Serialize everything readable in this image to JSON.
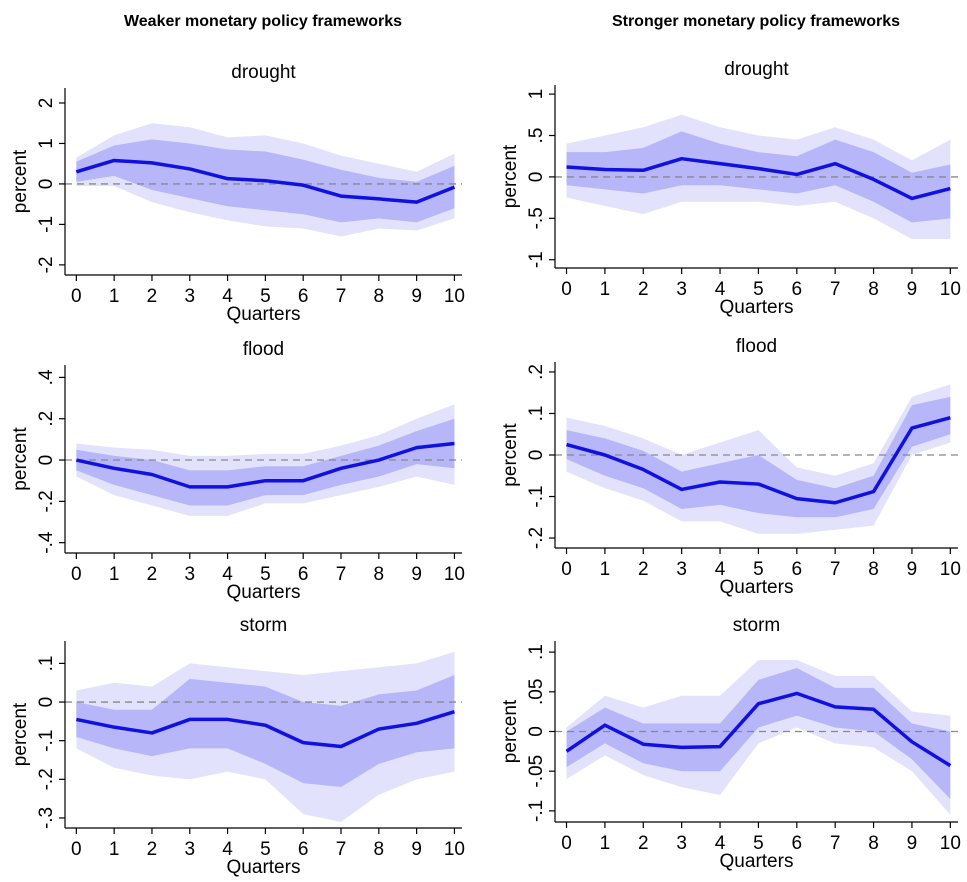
{
  "column_titles": [
    "Weaker monetary policy frameworks",
    "Stronger monetary policy frameworks"
  ],
  "chart_data": [
    {
      "type": "line",
      "title": "drought",
      "xlabel": "Quarters",
      "ylabel": "percent",
      "x": [
        0,
        1,
        2,
        3,
        4,
        5,
        6,
        7,
        8,
        9,
        10
      ],
      "xlim": [
        -0.3,
        10.2
      ],
      "xticks": [
        0,
        1,
        2,
        3,
        4,
        5,
        6,
        7,
        8,
        9,
        10
      ],
      "ylim": [
        -2.25,
        2.37
      ],
      "yticks": [
        -2,
        -1,
        0,
        1,
        2
      ],
      "series": [
        {
          "color": "#1010e0",
          "values": [
            0.3,
            0.58,
            0.52,
            0.37,
            0.13,
            0.08,
            -0.03,
            -0.3,
            -0.37,
            -0.45,
            -0.08
          ]
        }
      ],
      "bands": [
        {
          "color": "#e2e2fc",
          "upper": [
            0.65,
            1.2,
            1.5,
            1.4,
            1.15,
            1.2,
            1.0,
            0.7,
            0.5,
            0.3,
            0.75
          ],
          "lower": [
            -0.05,
            -0.05,
            -0.45,
            -0.7,
            -0.9,
            -1.05,
            -1.1,
            -1.3,
            -1.1,
            -1.15,
            -0.85
          ]
        },
        {
          "color": "#b6b6f8",
          "upper": [
            0.55,
            0.95,
            1.1,
            1.0,
            0.85,
            0.8,
            0.6,
            0.35,
            0.15,
            0.05,
            0.45
          ],
          "lower": [
            0.05,
            0.2,
            -0.15,
            -0.35,
            -0.55,
            -0.65,
            -0.75,
            -0.95,
            -0.85,
            -0.95,
            -0.6
          ]
        }
      ]
    },
    {
      "type": "line",
      "title": "drought",
      "xlabel": "Quarters",
      "ylabel": "percent",
      "x": [
        0,
        1,
        2,
        3,
        4,
        5,
        6,
        7,
        8,
        9,
        10
      ],
      "xlim": [
        -0.3,
        10.2
      ],
      "xticks": [
        0,
        1,
        2,
        3,
        4,
        5,
        6,
        7,
        8,
        9,
        10
      ],
      "ylim": [
        -1.1,
        1.11
      ],
      "yticks": [
        -1,
        {
          "value": -0.5,
          "label": "-.5"
        },
        0,
        {
          "value": 0.5,
          "label": ".5"
        },
        1
      ],
      "series": [
        {
          "color": "#1010e0",
          "values": [
            0.12,
            0.09,
            0.08,
            0.22,
            0.16,
            0.1,
            0.03,
            0.16,
            -0.03,
            -0.26,
            -0.14
          ]
        }
      ],
      "bands": [
        {
          "color": "#e2e2fc",
          "upper": [
            0.4,
            0.5,
            0.6,
            0.75,
            0.6,
            0.5,
            0.45,
            0.6,
            0.45,
            0.2,
            0.45
          ],
          "lower": [
            -0.25,
            -0.35,
            -0.45,
            -0.3,
            -0.3,
            -0.3,
            -0.35,
            -0.3,
            -0.5,
            -0.75,
            -0.75
          ]
        },
        {
          "color": "#b6b6f8",
          "upper": [
            0.3,
            0.3,
            0.35,
            0.55,
            0.4,
            0.3,
            0.25,
            0.45,
            0.3,
            0.05,
            0.15
          ],
          "lower": [
            -0.1,
            -0.15,
            -0.2,
            -0.1,
            -0.1,
            -0.15,
            -0.2,
            -0.1,
            -0.3,
            -0.55,
            -0.5
          ]
        }
      ]
    },
    {
      "type": "line",
      "title": "flood",
      "xlabel": "Quarters",
      "ylabel": "percent",
      "x": [
        0,
        1,
        2,
        3,
        4,
        5,
        6,
        7,
        8,
        9,
        10
      ],
      "xlim": [
        -0.3,
        10.2
      ],
      "xticks": [
        0,
        1,
        2,
        3,
        4,
        5,
        6,
        7,
        8,
        9,
        10
      ],
      "ylim": [
        -0.45,
        0.46
      ],
      "yticks": [
        {
          "value": -0.4,
          "label": "-.4"
        },
        {
          "value": -0.2,
          "label": "-.2"
        },
        0,
        {
          "value": 0.2,
          "label": ".2"
        },
        {
          "value": 0.4,
          "label": ".4"
        }
      ],
      "series": [
        {
          "color": "#1010e0",
          "values": [
            0.0,
            -0.04,
            -0.07,
            -0.13,
            -0.13,
            -0.1,
            -0.1,
            -0.04,
            0.0,
            0.06,
            0.08
          ]
        }
      ],
      "bands": [
        {
          "color": "#e2e2fc",
          "upper": [
            0.08,
            0.06,
            0.05,
            0.02,
            0.02,
            0.03,
            0.03,
            0.07,
            0.12,
            0.2,
            0.27
          ],
          "lower": [
            -0.08,
            -0.17,
            -0.22,
            -0.27,
            -0.27,
            -0.21,
            -0.21,
            -0.17,
            -0.13,
            -0.08,
            -0.12
          ]
        },
        {
          "color": "#b6b6f8",
          "upper": [
            0.05,
            0.02,
            0.0,
            -0.05,
            -0.05,
            -0.03,
            -0.03,
            0.02,
            0.07,
            0.14,
            0.2
          ],
          "lower": [
            -0.05,
            -0.12,
            -0.17,
            -0.22,
            -0.22,
            -0.17,
            -0.17,
            -0.12,
            -0.08,
            -0.02,
            -0.04
          ]
        }
      ]
    },
    {
      "type": "line",
      "title": "flood",
      "xlabel": "Quarters",
      "ylabel": "percent",
      "x": [
        0,
        1,
        2,
        3,
        4,
        5,
        6,
        7,
        8,
        9,
        10
      ],
      "xlim": [
        -0.3,
        10.2
      ],
      "xticks": [
        0,
        1,
        2,
        3,
        4,
        5,
        6,
        7,
        8,
        9,
        10
      ],
      "ylim": [
        -0.224,
        0.224
      ],
      "yticks": [
        {
          "value": -0.2,
          "label": "-.2"
        },
        {
          "value": -0.1,
          "label": "-.1"
        },
        0,
        {
          "value": 0.1,
          "label": ".1"
        },
        {
          "value": 0.2,
          "label": ".2"
        }
      ],
      "series": [
        {
          "color": "#1010e0",
          "values": [
            0.025,
            0.0,
            -0.035,
            -0.083,
            -0.065,
            -0.07,
            -0.105,
            -0.115,
            -0.088,
            0.065,
            0.09
          ]
        }
      ],
      "bands": [
        {
          "color": "#e2e2fc",
          "upper": [
            0.09,
            0.07,
            0.04,
            0.0,
            0.03,
            0.06,
            -0.03,
            -0.05,
            -0.02,
            0.14,
            0.17
          ],
          "lower": [
            -0.04,
            -0.08,
            -0.11,
            -0.16,
            -0.16,
            -0.19,
            -0.19,
            -0.18,
            -0.17,
            0.0,
            0.03
          ]
        },
        {
          "color": "#b6b6f8",
          "upper": [
            0.06,
            0.04,
            0.01,
            -0.04,
            -0.02,
            0.0,
            -0.06,
            -0.08,
            -0.05,
            0.12,
            0.14
          ],
          "lower": [
            -0.01,
            -0.05,
            -0.08,
            -0.13,
            -0.12,
            -0.14,
            -0.15,
            -0.15,
            -0.13,
            0.02,
            0.05
          ]
        }
      ]
    },
    {
      "type": "line",
      "title": "storm",
      "xlabel": "Quarters",
      "ylabel": "percent",
      "x": [
        0,
        1,
        2,
        3,
        4,
        5,
        6,
        7,
        8,
        9,
        10
      ],
      "xlim": [
        -0.3,
        10.2
      ],
      "xticks": [
        0,
        1,
        2,
        3,
        4,
        5,
        6,
        7,
        8,
        9,
        10
      ],
      "ylim": [
        -0.326,
        0.158
      ],
      "yticks": [
        {
          "value": -0.3,
          "label": "-.3"
        },
        {
          "value": -0.2,
          "label": "-.2"
        },
        {
          "value": -0.1,
          "label": "-.1"
        },
        0,
        {
          "value": 0.1,
          "label": ".1"
        }
      ],
      "series": [
        {
          "color": "#1010e0",
          "values": [
            -0.045,
            -0.065,
            -0.08,
            -0.045,
            -0.045,
            -0.06,
            -0.105,
            -0.115,
            -0.07,
            -0.055,
            -0.025
          ]
        }
      ],
      "bands": [
        {
          "color": "#e2e2fc",
          "upper": [
            0.03,
            0.05,
            0.04,
            0.1,
            0.09,
            0.08,
            0.07,
            0.08,
            0.09,
            0.1,
            0.13
          ],
          "lower": [
            -0.12,
            -0.17,
            -0.19,
            -0.2,
            -0.18,
            -0.2,
            -0.29,
            -0.31,
            -0.24,
            -0.2,
            -0.18
          ]
        },
        {
          "color": "#b6b6f8",
          "upper": [
            0.0,
            -0.02,
            -0.02,
            0.06,
            0.05,
            0.04,
            0.0,
            -0.01,
            0.02,
            0.03,
            0.07
          ],
          "lower": [
            -0.09,
            -0.12,
            -0.14,
            -0.12,
            -0.12,
            -0.16,
            -0.21,
            -0.22,
            -0.16,
            -0.13,
            -0.12
          ]
        }
      ]
    },
    {
      "type": "line",
      "title": "storm",
      "xlabel": "Quarters",
      "ylabel": "percent",
      "x": [
        0,
        1,
        2,
        3,
        4,
        5,
        6,
        7,
        8,
        9,
        10
      ],
      "xlim": [
        -0.3,
        10.2
      ],
      "xticks": [
        0,
        1,
        2,
        3,
        4,
        5,
        6,
        7,
        8,
        9,
        10
      ],
      "ylim": [
        -0.114,
        0.114
      ],
      "yticks": [
        {
          "value": -0.1,
          "label": "-.1"
        },
        {
          "value": -0.05,
          "label": "-.05"
        },
        0,
        {
          "value": 0.05,
          "label": ".05"
        },
        {
          "value": 0.1,
          "label": ".1"
        }
      ],
      "series": [
        {
          "color": "#1010e0",
          "values": [
            -0.025,
            0.008,
            -0.016,
            -0.02,
            -0.019,
            0.035,
            0.048,
            0.031,
            0.028,
            -0.013,
            -0.043
          ]
        }
      ],
      "bands": [
        {
          "color": "#e2e2fc",
          "upper": [
            0.005,
            0.045,
            0.03,
            0.045,
            0.045,
            0.09,
            0.09,
            0.07,
            0.07,
            0.025,
            0.02
          ],
          "lower": [
            -0.06,
            -0.03,
            -0.055,
            -0.07,
            -0.08,
            -0.015,
            0.005,
            -0.015,
            -0.02,
            -0.05,
            -0.105
          ]
        },
        {
          "color": "#b6b6f8",
          "upper": [
            0.0,
            0.03,
            0.01,
            0.01,
            0.01,
            0.065,
            0.08,
            0.055,
            0.055,
            0.01,
            0.0
          ],
          "lower": [
            -0.045,
            -0.015,
            -0.04,
            -0.05,
            -0.05,
            0.005,
            0.02,
            0.005,
            0.0,
            -0.035,
            -0.085
          ]
        }
      ]
    }
  ]
}
